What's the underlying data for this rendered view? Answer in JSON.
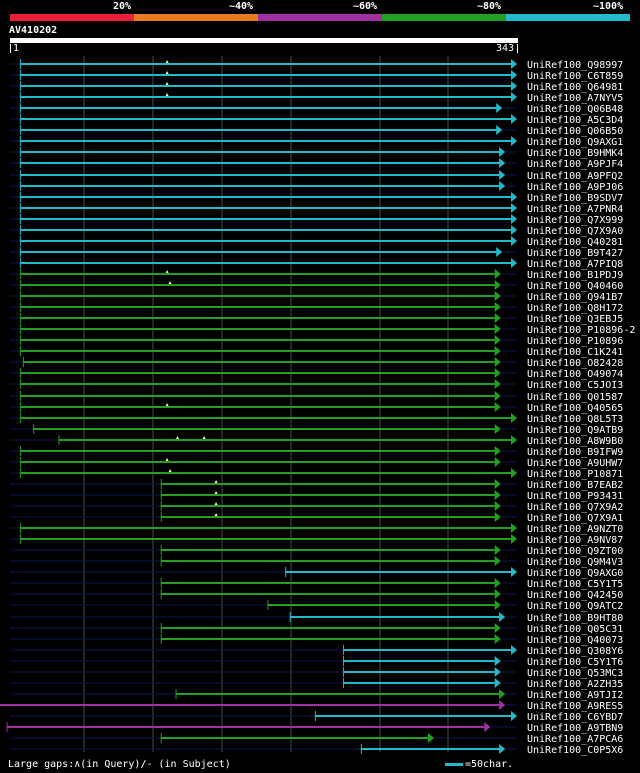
{
  "legend": {
    "labels": [
      "20%",
      "~40%",
      "~60%",
      "~80%",
      "~100%"
    ],
    "colors": [
      "#e8203a",
      "#e87a20",
      "#a030a0",
      "#22a020",
      "#22bbcc"
    ]
  },
  "query": {
    "name": "AV410202",
    "start": "1",
    "end": "343",
    "length": 343
  },
  "footer": {
    "text": "Large gaps:∧(in Query)/- (in Subject)",
    "scale_text": "=50char."
  },
  "hits": [
    {
      "label": "UniRef100_Q98997",
      "start": 8,
      "end": 343,
      "color": "#22bbcc",
      "gaps": [
        107
      ]
    },
    {
      "label": "UniRef100_C6T859",
      "start": 8,
      "end": 343,
      "color": "#22bbcc",
      "gaps": [
        107
      ]
    },
    {
      "label": "UniRef100_Q64981",
      "start": 8,
      "end": 343,
      "color": "#22bbcc",
      "gaps": [
        107
      ]
    },
    {
      "label": "UniRef100_A7NYV5",
      "start": 8,
      "end": 343,
      "color": "#22bbcc",
      "gaps": [
        107
      ]
    },
    {
      "label": "UniRef100_Q06B48",
      "start": 8,
      "end": 333,
      "color": "#22bbcc",
      "gaps": []
    },
    {
      "label": "UniRef100_A5C3D4",
      "start": 8,
      "end": 343,
      "color": "#22bbcc",
      "gaps": []
    },
    {
      "label": "UniRef100_Q06B50",
      "start": 8,
      "end": 333,
      "color": "#22bbcc",
      "gaps": []
    },
    {
      "label": "UniRef100_Q9AXG1",
      "start": 8,
      "end": 343,
      "color": "#22bbcc",
      "gaps": []
    },
    {
      "label": "UniRef100_B9HMK4",
      "start": 8,
      "end": 335,
      "color": "#22bbcc",
      "gaps": []
    },
    {
      "label": "UniRef100_A9PJF4",
      "start": 8,
      "end": 335,
      "color": "#22bbcc",
      "gaps": []
    },
    {
      "label": "UniRef100_A9PFQ2",
      "start": 8,
      "end": 335,
      "color": "#22bbcc",
      "gaps": []
    },
    {
      "label": "UniRef100_A9PJ06",
      "start": 8,
      "end": 335,
      "color": "#22bbcc",
      "gaps": []
    },
    {
      "label": "UniRef100_B9SDV7",
      "start": 8,
      "end": 343,
      "color": "#22bbcc",
      "gaps": []
    },
    {
      "label": "UniRef100_A7PNR4",
      "start": 8,
      "end": 343,
      "color": "#22bbcc",
      "gaps": []
    },
    {
      "label": "UniRef100_Q7X999",
      "start": 8,
      "end": 343,
      "color": "#22bbcc",
      "gaps": []
    },
    {
      "label": "UniRef100_Q7X9A0",
      "start": 8,
      "end": 343,
      "color": "#22bbcc",
      "gaps": []
    },
    {
      "label": "UniRef100_Q40281",
      "start": 8,
      "end": 343,
      "color": "#22bbcc",
      "gaps": []
    },
    {
      "label": "UniRef100_B9T427",
      "start": 8,
      "end": 333,
      "color": "#22bbcc",
      "gaps": []
    },
    {
      "label": "UniRef100_A7PIQ8",
      "start": 8,
      "end": 343,
      "color": "#22bbcc",
      "gaps": []
    },
    {
      "label": "UniRef100_B1PDJ9",
      "start": 8,
      "end": 332,
      "color": "#22a020",
      "gaps": [
        107
      ]
    },
    {
      "label": "UniRef100_Q40460",
      "start": 8,
      "end": 332,
      "color": "#22a020",
      "gaps": [
        109
      ]
    },
    {
      "label": "UniRef100_Q941B7",
      "start": 8,
      "end": 332,
      "color": "#22a020",
      "gaps": []
    },
    {
      "label": "UniRef100_Q8H172",
      "start": 8,
      "end": 332,
      "color": "#22a020",
      "gaps": []
    },
    {
      "label": "UniRef100_Q3EBJ5",
      "start": 8,
      "end": 332,
      "color": "#22a020",
      "gaps": []
    },
    {
      "label": "UniRef100_P10896-2",
      "start": 8,
      "end": 332,
      "color": "#22a020",
      "gaps": []
    },
    {
      "label": "UniRef100_P10896",
      "start": 8,
      "end": 332,
      "color": "#22a020",
      "gaps": []
    },
    {
      "label": "UniRef100_C1K241",
      "start": 8,
      "end": 332,
      "color": "#22a020",
      "gaps": []
    },
    {
      "label": "UniRef100_O82428",
      "start": 10,
      "end": 332,
      "color": "#22a020",
      "gaps": []
    },
    {
      "label": "UniRef100_O49074",
      "start": 8,
      "end": 332,
      "color": "#22a020",
      "gaps": []
    },
    {
      "label": "UniRef100_C5JOI3",
      "start": 8,
      "end": 332,
      "color": "#22a020",
      "gaps": []
    },
    {
      "label": "UniRef100_Q01587",
      "start": 8,
      "end": 332,
      "color": "#22a020",
      "gaps": []
    },
    {
      "label": "UniRef100_Q40565",
      "start": 8,
      "end": 332,
      "color": "#22a020",
      "gaps": [
        107
      ]
    },
    {
      "label": "UniRef100_Q8L5T3",
      "start": 8,
      "end": 343,
      "color": "#22a020",
      "gaps": []
    },
    {
      "label": "UniRef100_Q9ATB9",
      "start": 17,
      "end": 332,
      "color": "#22a020",
      "gaps": []
    },
    {
      "label": "UniRef100_A8W9B0",
      "start": 34,
      "end": 343,
      "color": "#22a020",
      "gaps": [
        114,
        132
      ]
    },
    {
      "label": "UniRef100_B9IFW9",
      "start": 8,
      "end": 332,
      "color": "#22a020",
      "gaps": []
    },
    {
      "label": "UniRef100_A9UHW7",
      "start": 8,
      "end": 332,
      "color": "#22a020",
      "gaps": [
        107
      ]
    },
    {
      "label": "UniRef100_P10871",
      "start": 8,
      "end": 343,
      "color": "#22a020",
      "gaps": [
        109
      ]
    },
    {
      "label": "UniRef100_B7EAB2",
      "start": 103,
      "end": 332,
      "color": "#22a020",
      "gaps": [
        140
      ]
    },
    {
      "label": "UniRef100_P93431",
      "start": 103,
      "end": 332,
      "color": "#22a020",
      "gaps": [
        140
      ]
    },
    {
      "label": "UniRef100_Q7X9A2",
      "start": 103,
      "end": 332,
      "color": "#22a020",
      "gaps": [
        140
      ]
    },
    {
      "label": "UniRef100_Q7X9A1",
      "start": 103,
      "end": 332,
      "color": "#22a020",
      "gaps": [
        140
      ]
    },
    {
      "label": "UniRef100_A9NZT0",
      "start": 8,
      "end": 343,
      "color": "#22a020",
      "gaps": []
    },
    {
      "label": "UniRef100_A9NV87",
      "start": 8,
      "end": 343,
      "color": "#22a020",
      "gaps": []
    },
    {
      "label": "UniRef100_Q9ZT00",
      "start": 103,
      "end": 332,
      "color": "#22a020",
      "gaps": []
    },
    {
      "label": "UniRef100_Q9M4V3",
      "start": 103,
      "end": 332,
      "color": "#22a020",
      "gaps": []
    },
    {
      "label": "UniRef100_Q9AXG0",
      "start": 187,
      "end": 343,
      "color": "#22bbcc",
      "gaps": []
    },
    {
      "label": "UniRef100_C5Y1T5",
      "start": 103,
      "end": 332,
      "color": "#22a020",
      "gaps": []
    },
    {
      "label": "UniRef100_Q42450",
      "start": 103,
      "end": 332,
      "color": "#22a020",
      "gaps": []
    },
    {
      "label": "UniRef100_Q9ATC2",
      "start": 175,
      "end": 332,
      "color": "#22a020",
      "gaps": []
    },
    {
      "label": "UniRef100_B9HT80",
      "start": 190,
      "end": 335,
      "color": "#22bbcc",
      "gaps": []
    },
    {
      "label": "UniRef100_Q05C31",
      "start": 103,
      "end": 332,
      "color": "#22a020",
      "gaps": []
    },
    {
      "label": "UniRef100_Q40073",
      "start": 103,
      "end": 332,
      "color": "#22a020",
      "gaps": []
    },
    {
      "label": "UniRef100_Q308Y6",
      "start": 226,
      "end": 343,
      "color": "#22bbcc",
      "gaps": []
    },
    {
      "label": "UniRef100_C5Y1T6",
      "start": 226,
      "end": 332,
      "color": "#22bbcc",
      "gaps": []
    },
    {
      "label": "UniRef100_Q53MC3",
      "start": 226,
      "end": 332,
      "color": "#22bbcc",
      "gaps": []
    },
    {
      "label": "UniRef100_A2ZH35",
      "start": 226,
      "end": 332,
      "color": "#22bbcc",
      "gaps": []
    },
    {
      "label": "UniRef100_A9TJI2",
      "start": 113,
      "end": 335,
      "color": "#22a020",
      "gaps": []
    },
    {
      "label": "UniRef100_A9RES5",
      "start": -17,
      "end": 335,
      "color": "#a030a0",
      "gaps": []
    },
    {
      "label": "UniRef100_C6YBD7",
      "start": 207,
      "end": 343,
      "color": "#22bbcc",
      "gaps": []
    },
    {
      "label": "UniRef100_A9TBN9",
      "start": -1,
      "end": 325,
      "color": "#a030a0",
      "gaps": []
    },
    {
      "label": "UniRef100_A7PCA6",
      "start": 103,
      "end": 287,
      "color": "#22a020",
      "gaps": []
    },
    {
      "label": "UniRef100_C0P5X6",
      "start": 238,
      "end": 335,
      "color": "#22bbcc",
      "gaps": []
    }
  ]
}
